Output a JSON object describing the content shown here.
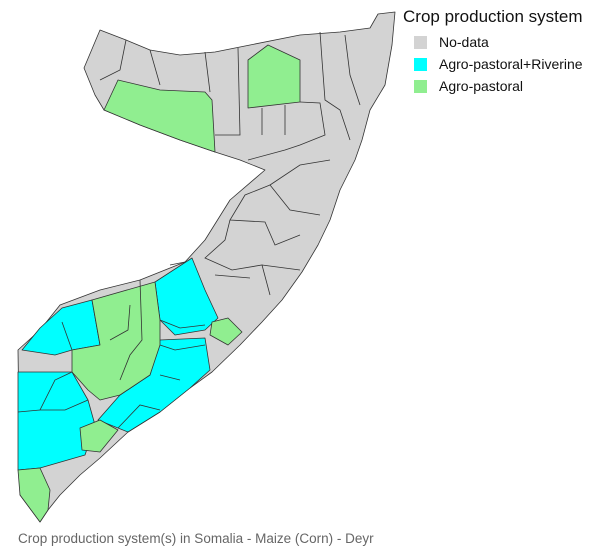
{
  "legend": {
    "title": "Crop production system",
    "items": [
      {
        "label": "No-data",
        "color": "#d3d3d3"
      },
      {
        "label": "Agro-pastoral+Riverine",
        "color": "#00ffff"
      },
      {
        "label": "Agro-pastoral",
        "color": "#90ee90"
      }
    ]
  },
  "caption": "Crop production system(s) in Somalia - Maize (Corn) - Deyr",
  "colors": {
    "no_data": "#d3d3d3",
    "agro_pastoral_riverine": "#00ffff",
    "agro_pastoral": "#90ee90",
    "border": "#333333"
  }
}
